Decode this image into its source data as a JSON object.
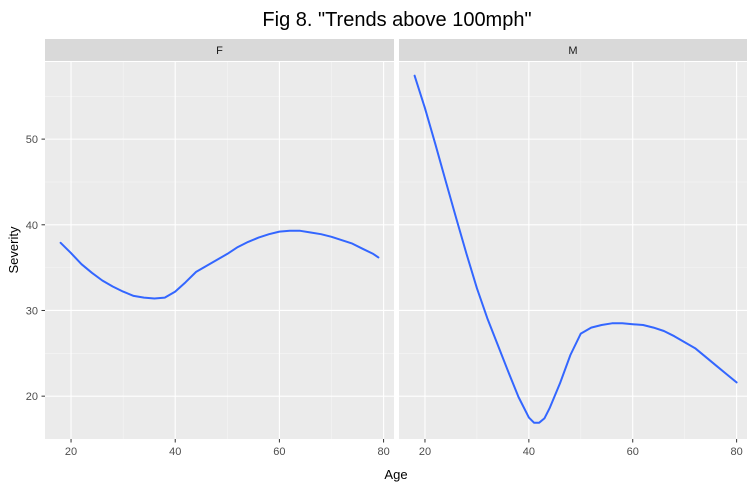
{
  "chart_data": {
    "type": "line",
    "title": "Fig 8. \"Trends above 100mph\"",
    "xlabel": "Age",
    "ylabel": "Severity",
    "xlim": [
      15,
      82
    ],
    "ylim": [
      15,
      59
    ],
    "x_ticks": [
      20,
      40,
      60,
      80
    ],
    "y_ticks": [
      20,
      30,
      40,
      50
    ],
    "grid": true,
    "line_color": "#3366FF",
    "panel_bg": "#EBEBEB",
    "strip_bg": "#D9D9D9",
    "panels": [
      {
        "label": "F",
        "series": [
          {
            "x": [
              18,
              20,
              22,
              24,
              26,
              28,
              30,
              32,
              34,
              36,
              38,
              40,
              42,
              44,
              46,
              48,
              50,
              52,
              54,
              56,
              58,
              60,
              62,
              64,
              66,
              68,
              70,
              72,
              74,
              76,
              78,
              79
            ],
            "y": [
              37.9,
              36.7,
              35.4,
              34.4,
              33.5,
              32.8,
              32.2,
              31.7,
              31.5,
              31.4,
              31.5,
              32.2,
              33.3,
              34.5,
              35.2,
              35.9,
              36.6,
              37.4,
              38.0,
              38.5,
              38.9,
              39.2,
              39.3,
              39.3,
              39.1,
              38.9,
              38.6,
              38.2,
              37.8,
              37.2,
              36.6,
              36.2
            ]
          }
        ]
      },
      {
        "label": "M",
        "series": [
          {
            "x": [
              18,
              20,
              22,
              24,
              26,
              28,
              30,
              32,
              34,
              36,
              38,
              40,
              41,
              42,
              43,
              44,
              46,
              48,
              50,
              52,
              54,
              56,
              58,
              60,
              62,
              64,
              66,
              68,
              70,
              72,
              74,
              76,
              78,
              80
            ],
            "y": [
              57.4,
              53.6,
              49.4,
              45.1,
              40.8,
              36.6,
              32.6,
              29.1,
              26.0,
              22.9,
              19.9,
              17.5,
              16.9,
              16.9,
              17.4,
              18.6,
              21.5,
              24.8,
              27.3,
              28.0,
              28.3,
              28.5,
              28.5,
              28.4,
              28.3,
              28.0,
              27.6,
              27.0,
              26.3,
              25.6,
              24.6,
              23.6,
              22.6,
              21.6
            ]
          }
        ]
      }
    ]
  }
}
